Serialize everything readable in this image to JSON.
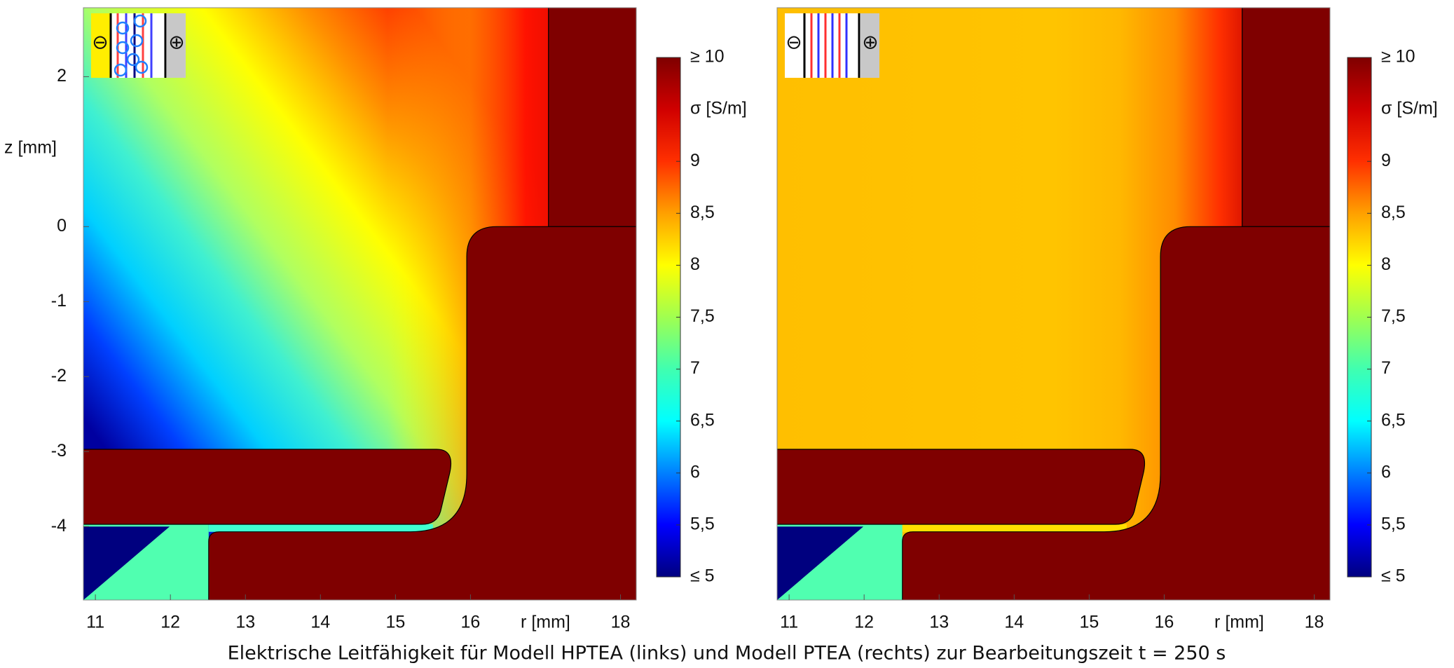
{
  "caption": "Elektrische Leitfähigkeit für Modell HPTEA (links) und Modell PTEA (rechts) zur Bearbeitungszeit t = 250 s",
  "chart_data": [
    {
      "type": "heatmap",
      "xlabel": "r [mm]",
      "ylabel": "z [mm]",
      "colorbar_label": "σ [S/m]",
      "inset_labels": [
        "⊖",
        "⊕"
      ],
      "xlim": [
        10.84,
        18.21
      ],
      "xticks": [
        11,
        12,
        13,
        14,
        15,
        16,
        18
      ],
      "ylim": [
        -4.98,
        2.92
      ],
      "yticks": [
        -4,
        -3,
        -2,
        -1,
        0,
        2
      ],
      "clim": [
        5,
        10
      ],
      "cticks": [
        {
          "value": 5,
          "label": "≤ 5"
        },
        {
          "value": 5.5,
          "label": "5,5"
        },
        6,
        {
          "value": 6.5,
          "label": "6,5"
        },
        7,
        {
          "value": 7.5,
          "label": "7,5"
        },
        8,
        {
          "value": 8.5,
          "label": "8,5"
        },
        9,
        {
          "value": 10,
          "label": "≥ 10"
        }
      ],
      "colormap": [
        "#00007f",
        "#0000ff",
        "#0080ff",
        "#00ffff",
        "#40ffb0",
        "#a0ff50",
        "#ffff00",
        "#ffa000",
        "#ff3000",
        "#d00000",
        "#7f0000"
      ]
    },
    {
      "type": "heatmap",
      "xlabel": "r [mm]",
      "colorbar_label": "σ [S/m]",
      "inset_labels": [
        "⊖",
        "⊕"
      ],
      "xlim": [
        10.84,
        18.21
      ],
      "xticks": [
        11,
        12,
        13,
        14,
        15,
        16,
        18
      ],
      "ylim": [
        -4.98,
        2.92
      ],
      "clim": [
        5,
        10
      ],
      "cticks": [
        {
          "value": 5,
          "label": "≤ 5"
        },
        {
          "value": 5.5,
          "label": "5,5"
        },
        6,
        {
          "value": 6.5,
          "label": "6,5"
        },
        7,
        {
          "value": 7.5,
          "label": "7,5"
        },
        8,
        {
          "value": 8.5,
          "label": "8,5"
        },
        9,
        {
          "value": 10,
          "label": "≥ 10"
        }
      ],
      "colormap": [
        "#00007f",
        "#0000ff",
        "#0080ff",
        "#00ffff",
        "#40ffb0",
        "#a0ff50",
        "#ffff00",
        "#ffa000",
        "#ff3000",
        "#d00000",
        "#7f0000"
      ]
    }
  ]
}
